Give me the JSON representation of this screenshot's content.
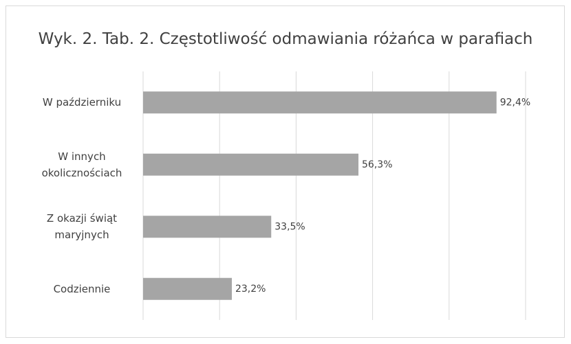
{
  "chart_data": {
    "type": "barh",
    "title": "Wyk. 2. Tab. 2. Częstotliwość odmawiania różańca w parafiach",
    "categories": [
      "W październiku",
      "W innych okolicznościach",
      "Z okazji świąt maryjnych",
      "Codziennie"
    ],
    "values": [
      92.4,
      56.3,
      33.5,
      23.2
    ],
    "value_labels": [
      "92,4%",
      "56,3%",
      "33,5%",
      "23,2%"
    ],
    "color": "#a5a5a5",
    "xlim": [
      0,
      100
    ],
    "xticks": [
      0,
      20,
      40,
      60,
      80,
      100
    ],
    "grid": true
  }
}
